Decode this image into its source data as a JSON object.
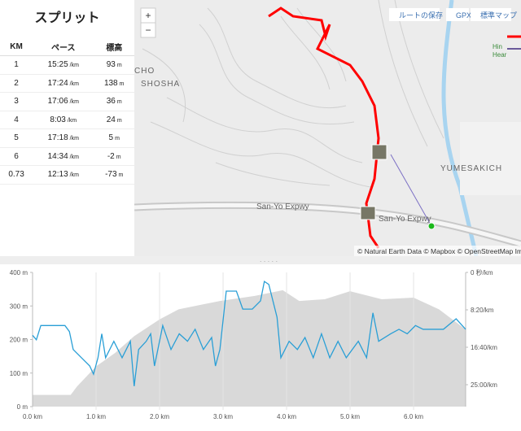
{
  "splits": {
    "title": "スプリット",
    "headers": [
      "KM",
      "ペース",
      "標高"
    ],
    "rows": [
      [
        "1",
        {
          "value": "15:25",
          "unit": "/km"
        },
        {
          "value": "93",
          "unit": "m"
        }
      ],
      [
        "2",
        {
          "value": "17:24",
          "unit": "/km"
        },
        {
          "value": "138",
          "unit": "m"
        }
      ],
      [
        "3",
        {
          "value": "17:06",
          "unit": "/km"
        },
        {
          "value": "36",
          "unit": "m"
        }
      ],
      [
        "4",
        {
          "value": "8:03",
          "unit": "/km"
        },
        {
          "value": "24",
          "unit": "m"
        }
      ],
      [
        "5",
        {
          "value": "17:18",
          "unit": "/km"
        },
        {
          "value": "5",
          "unit": "m"
        }
      ],
      [
        "6",
        {
          "value": "14:34",
          "unit": "/km"
        },
        {
          "value": "-2",
          "unit": "m"
        }
      ],
      [
        "0.73",
        {
          "value": "12:13",
          "unit": "/km"
        },
        {
          "value": "-73",
          "unit": "m"
        }
      ]
    ]
  },
  "map": {
    "buttons": [
      "ルートの保存",
      "GPX",
      "標準マップ"
    ],
    "zoom": [
      "+",
      "−"
    ],
    "labels": [
      "CHO",
      "SHOSHA",
      "YUMESAKICH",
      "San-Yo Expwy",
      "San-Yo Expwy",
      "Hin",
      "Hear"
    ],
    "attribution": "© Natural Earth Data © Mapbox © OpenStreetMap Impr"
  },
  "elevation_chart": {
    "xlim": [
      0,
      6.82
    ],
    "xticks": [
      {
        "value": 0,
        "label": "0.0 km"
      },
      {
        "value": 1,
        "label": "1.0 km"
      },
      {
        "value": 2,
        "label": "2.0 km"
      },
      {
        "value": 3,
        "label": "3.0 km"
      },
      {
        "value": 4,
        "label": "4.0 km"
      },
      {
        "value": 5,
        "label": "5.0 km"
      },
      {
        "value": 6,
        "label": "6.0 km"
      }
    ],
    "ylim": [
      0,
      400
    ],
    "yticks": [
      {
        "value": 0,
        "label": "0 m"
      },
      {
        "value": 100,
        "label": "100 m"
      },
      {
        "value": 200,
        "label": "200 m"
      },
      {
        "value": 300,
        "label": "300 m"
      },
      {
        "value": 400,
        "label": "400 m"
      }
    ],
    "y2lim": [
      0,
      1793
    ],
    "y2_reversed": true,
    "y2ticks": [
      {
        "value": 0,
        "label": "0 秒/km"
      },
      {
        "value": 500,
        "label": "8:20/km"
      },
      {
        "value": 1000,
        "label": "16:40/km"
      },
      {
        "value": 1500,
        "label": "25:00/km"
      }
    ],
    "elevation": {
      "color": "#d9d9d9",
      "x": [
        0,
        0.6,
        0.7,
        1.0,
        1.3,
        1.6,
        2.0,
        2.3,
        2.95,
        3.5,
        3.94,
        4.2,
        4.6,
        5.0,
        5.5,
        6.0,
        6.4,
        6.82
      ],
      "values": [
        35,
        35,
        60,
        120,
        160,
        210,
        260,
        290,
        315,
        330,
        347,
        315,
        320,
        344,
        320,
        325,
        290,
        230
      ]
    },
    "pace": {
      "color": "#2a9fd6",
      "axis": "y2",
      "x": [
        0,
        0.06,
        0.13,
        0.51,
        0.58,
        0.64,
        0.77,
        0.9,
        0.96,
        1.03,
        1.09,
        1.15,
        1.28,
        1.41,
        1.54,
        1.6,
        1.67,
        1.79,
        1.86,
        1.92,
        2.05,
        2.18,
        2.31,
        2.44,
        2.56,
        2.69,
        2.82,
        2.88,
        2.95,
        3.05,
        3.21,
        3.31,
        3.46,
        3.59,
        3.65,
        3.72,
        3.85,
        3.91,
        4.04,
        4.17,
        4.29,
        4.42,
        4.55,
        4.68,
        4.81,
        4.94,
        5.13,
        5.26,
        5.36,
        5.45,
        5.64,
        5.77,
        5.9,
        6.03,
        6.15,
        6.35,
        6.47,
        6.67,
        6.82
      ],
      "values": [
        840,
        900,
        710,
        710,
        790,
        1030,
        1140,
        1250,
        1360,
        1140,
        820,
        1140,
        920,
        1140,
        920,
        1520,
        1030,
        920,
        820,
        1250,
        710,
        1030,
        820,
        920,
        760,
        1030,
        870,
        1250,
        1030,
        250,
        250,
        490,
        490,
        380,
        120,
        160,
        600,
        1140,
        920,
        1030,
        870,
        1140,
        820,
        1140,
        920,
        1140,
        920,
        1140,
        540,
        920,
        820,
        760,
        820,
        710,
        760,
        760,
        760,
        620,
        760
      ]
    }
  }
}
